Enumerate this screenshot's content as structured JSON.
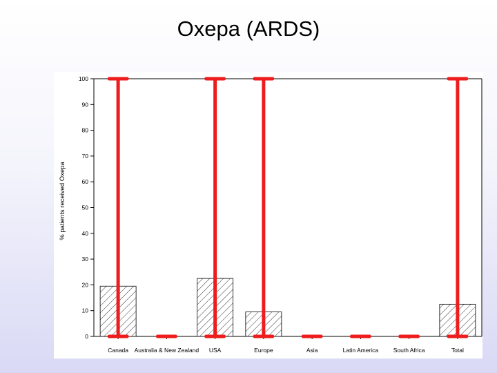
{
  "slide": {
    "title": "Oxepa (ARDS)"
  },
  "chart_data": {
    "type": "bar",
    "title": "",
    "xlabel": "",
    "ylabel": "% patients received Oxepa",
    "categories": [
      "Canada",
      "Australia & New Zealand",
      "USA",
      "Europe",
      "Asia",
      "Latin America",
      "South Africa",
      "Total"
    ],
    "series": [
      {
        "values": [
          19.5,
          0,
          22.5,
          9.5,
          0,
          0,
          0,
          12.5
        ],
        "error_low": [
          0,
          0,
          0,
          0,
          0,
          0,
          0,
          0
        ],
        "error_high": [
          100,
          0,
          100,
          100,
          0,
          0,
          0,
          100
        ]
      }
    ],
    "ylim": [
      0,
      100
    ],
    "yticks": [
      0,
      10,
      20,
      30,
      40,
      50,
      60,
      70,
      80,
      90,
      100
    ],
    "grid": false,
    "bar_pattern": "diagonal-hatch",
    "colors": {
      "bar_edge": "#000000",
      "error_bar": "#ee1c1c"
    }
  }
}
